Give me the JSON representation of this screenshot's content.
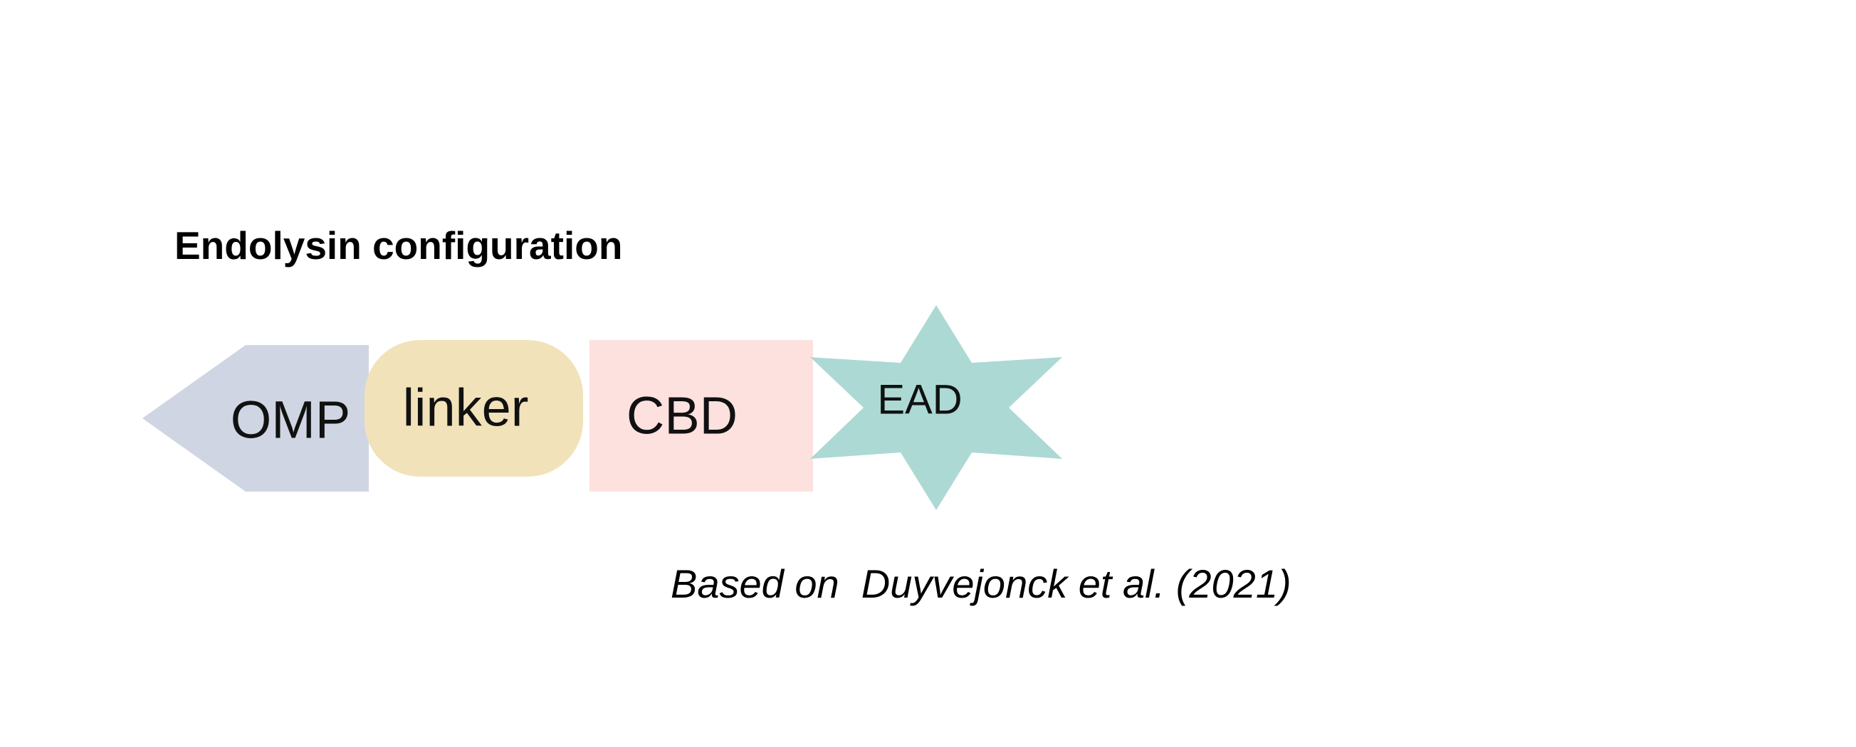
{
  "title": "Endolysin configuration",
  "domains": [
    {
      "id": "omp",
      "label": "OMP",
      "shape": "arrow-left",
      "color": "#cfd5e2"
    },
    {
      "id": "linker",
      "label": "linker",
      "shape": "rounded-rectangle",
      "color": "#f2e2ba"
    },
    {
      "id": "cbd",
      "label": "CBD",
      "shape": "rectangle",
      "color": "#fce1df"
    },
    {
      "id": "ead",
      "label": "EAD",
      "shape": "six-point-star",
      "color": "#acd9d4"
    }
  ],
  "citation": "Based on  Duyvejonck et al. (2021)"
}
